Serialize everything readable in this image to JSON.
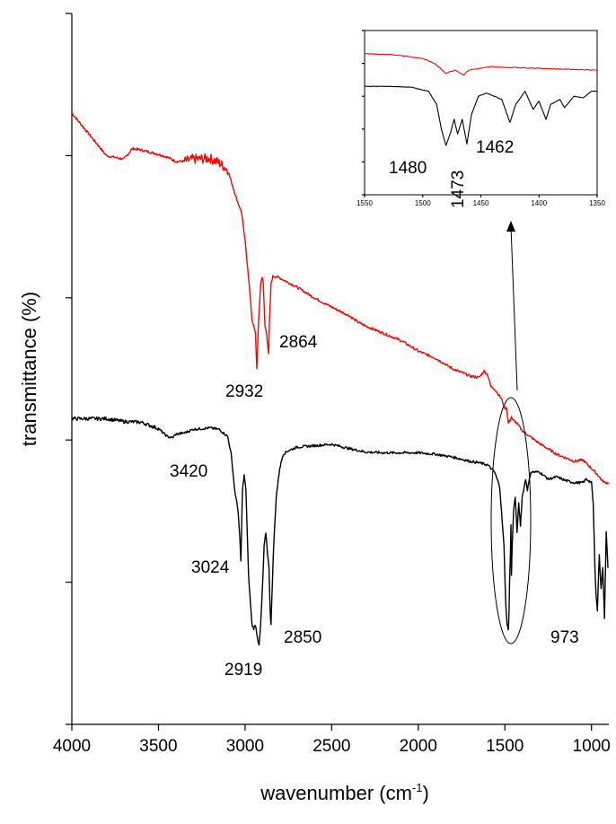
{
  "chart_data": [
    {
      "type": "line",
      "title": "",
      "xlabel": "wavenumber  (cm",
      "xlabel_sup": "-1",
      "xlabel_close": ")",
      "ylabel": "transmittance (%)",
      "xlim": [
        4000,
        900
      ],
      "x_reversed": true,
      "ylim": [
        0,
        100
      ],
      "y_tick_labels_shown": false,
      "x_ticks": [
        4000,
        3500,
        3000,
        2500,
        2000,
        1500,
        1000
      ],
      "x_tick_labels": [
        "4000",
        "3500",
        "3000",
        "2500",
        "2000",
        "1500",
        "1000"
      ],
      "series": [
        {
          "color": "#ff0000",
          "x": [
            4000,
            3900,
            3800,
            3700,
            3650,
            3600,
            3500,
            3450,
            3400,
            3350,
            3300,
            3200,
            3150,
            3100,
            3050,
            3020,
            3000,
            2980,
            2960,
            2950,
            2940,
            2932,
            2925,
            2910,
            2900,
            2895,
            2885,
            2875,
            2868,
            2864,
            2860,
            2850,
            2840,
            2820,
            2800,
            2700,
            2600,
            2500,
            2400,
            2350,
            2300,
            2200,
            2100,
            2000,
            1900,
            1800,
            1700,
            1650,
            1620,
            1600,
            1580,
            1560,
            1540,
            1520,
            1500,
            1490,
            1480,
            1470,
            1462,
            1455,
            1440,
            1420,
            1400,
            1300,
            1200,
            1100,
            1050,
            1000,
            980,
            960,
            940,
            920,
            900
          ],
          "y": [
            86,
            83,
            80,
            79.5,
            81,
            80.8,
            80.2,
            79.8,
            79.2,
            79.2,
            79.5,
            79.6,
            79,
            78,
            74,
            72,
            68,
            63,
            57,
            56,
            55,
            50,
            55,
            62,
            63,
            62,
            56,
            55,
            53,
            52,
            56,
            62,
            63,
            63,
            62.8,
            61.5,
            60,
            58.7,
            57.5,
            56.6,
            56,
            55,
            54,
            52.5,
            51.5,
            50,
            49,
            48.8,
            49.7,
            49.2,
            47.5,
            47.2,
            46.5,
            45.8,
            44.5,
            44.5,
            42.3,
            42.8,
            43.3,
            42.8,
            42.6,
            42,
            41.3,
            39.5,
            38,
            37,
            37.2,
            36,
            35.5,
            35,
            34.3,
            34,
            34
          ]
        },
        {
          "color": "#000000",
          "x": [
            4000,
            3900,
            3800,
            3700,
            3600,
            3500,
            3450,
            3420,
            3400,
            3350,
            3300,
            3200,
            3150,
            3100,
            3080,
            3060,
            3040,
            3030,
            3024,
            3015,
            3005,
            2995,
            2980,
            2960,
            2950,
            2940,
            2930,
            2919,
            2910,
            2900,
            2890,
            2880,
            2870,
            2862,
            2855,
            2850,
            2845,
            2835,
            2820,
            2800,
            2780,
            2750,
            2700,
            2600,
            2500,
            2400,
            2300,
            2200,
            2100,
            2000,
            1900,
            1800,
            1700,
            1650,
            1600,
            1560,
            1530,
            1505,
            1495,
            1487,
            1480,
            1476,
            1473,
            1468,
            1465,
            1462,
            1458,
            1450,
            1440,
            1430,
            1420,
            1410,
            1400,
            1380,
            1370,
            1350,
            1300,
            1250,
            1200,
            1150,
            1100,
            1050,
            1030,
            1000,
            990,
            980,
            973,
            966,
            955,
            945,
            935,
            925,
            915,
            905
          ],
          "y": [
            43,
            43,
            43,
            42.6,
            42.5,
            41.6,
            40.5,
            40.3,
            40.8,
            41,
            41.5,
            41.7,
            41.5,
            40.5,
            38,
            33,
            30,
            26,
            23,
            33,
            35,
            33,
            21,
            14,
            13.5,
            14,
            12.5,
            11,
            14,
            19,
            25,
            27,
            24,
            22,
            16,
            14,
            18,
            25,
            32,
            36,
            38,
            38.5,
            39,
            39.2,
            39.4,
            38.8,
            38.3,
            38.2,
            38.2,
            38.2,
            38,
            37.6,
            37,
            36.8,
            36.5,
            35.5,
            33.5,
            25,
            17,
            14,
            13.2,
            16,
            20,
            24,
            28,
            21,
            25,
            30,
            32,
            27,
            31,
            28,
            32,
            34.5,
            33,
            35.5,
            35.5,
            34.5,
            34.8,
            34.3,
            34,
            34,
            34.5,
            34,
            31,
            22,
            18,
            16,
            24,
            19,
            22,
            15,
            27,
            22
          ]
        }
      ],
      "annotations": [
        {
          "text": "2932",
          "x": 2932
        },
        {
          "text": "2864",
          "x": 2864
        },
        {
          "text": "3420",
          "x": 3420
        },
        {
          "text": "3024",
          "x": 3024
        },
        {
          "text": "2919",
          "x": 2919
        },
        {
          "text": "2850",
          "x": 2850
        },
        {
          "text": "973",
          "x": 973
        }
      ]
    },
    {
      "type": "line",
      "title": "",
      "xlabel": "",
      "ylabel": "",
      "xlim": [
        1550,
        1350
      ],
      "x_reversed": true,
      "ylim": [
        0,
        100
      ],
      "x_ticks": [
        1550,
        1500,
        1450,
        1400,
        1350
      ],
      "x_tick_labels": [
        "1550",
        "1500",
        "1450",
        "1400",
        "1350"
      ],
      "series": [
        {
          "color": "#ff0000",
          "x": [
            1550,
            1520,
            1500,
            1490,
            1480,
            1472,
            1465,
            1460,
            1450,
            1440,
            1430,
            1420,
            1400,
            1380,
            1350
          ],
          "y": [
            86,
            85,
            83,
            80,
            74,
            76,
            73,
            76,
            77,
            78,
            77.5,
            77.5,
            77,
            76.5,
            76
          ]
        },
        {
          "color": "#000000",
          "x": [
            1550,
            1530,
            1510,
            1495,
            1488,
            1484,
            1480,
            1476,
            1473,
            1470,
            1466,
            1462,
            1458,
            1452,
            1445,
            1432,
            1425,
            1420,
            1412,
            1405,
            1400,
            1394,
            1390,
            1382,
            1378,
            1370,
            1362,
            1355,
            1350
          ],
          "y": [
            66,
            66,
            65.5,
            63,
            55,
            40,
            30,
            38,
            46,
            37,
            46,
            31,
            49,
            60,
            62,
            58,
            44,
            55,
            63,
            52,
            57,
            46,
            55,
            58,
            53,
            60,
            59,
            63,
            63
          ]
        }
      ],
      "annotations": [
        {
          "text": "1480",
          "x": 1480
        },
        {
          "text": "1473",
          "x": 1473
        },
        {
          "text": "1462",
          "x": 1462
        }
      ]
    }
  ]
}
